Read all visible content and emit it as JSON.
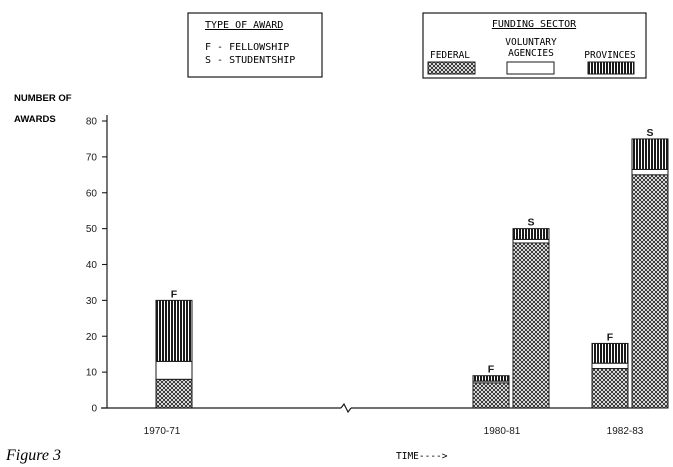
{
  "chart_data": {
    "type": "bar",
    "stacked": true,
    "ylabel": [
      "NUMBER OF",
      "AWARDS"
    ],
    "xlabel": "TIME---->",
    "caption": "Figure 3",
    "ylim": [
      0,
      80
    ],
    "yticks": [
      0,
      10,
      20,
      30,
      40,
      50,
      60,
      70,
      80
    ],
    "axis_break": true,
    "categories": [
      "1970-71",
      "1980-81",
      "1982-83"
    ],
    "bars": [
      {
        "category": "1970-71",
        "type": "F",
        "federal": 8,
        "voluntary": 5,
        "provinces": 17
      },
      {
        "category": "1980-81",
        "type": "F",
        "federal": 7,
        "voluntary": 0.5,
        "provinces": 1.5
      },
      {
        "category": "1980-81",
        "type": "S",
        "federal": 46,
        "voluntary": 1,
        "provinces": 3
      },
      {
        "category": "1982-83",
        "type": "F",
        "federal": 11,
        "voluntary": 1.5,
        "provinces": 5.5
      },
      {
        "category": "1982-83",
        "type": "S",
        "federal": 65,
        "voluntary": 1.5,
        "provinces": 8.5
      }
    ],
    "legend_type": {
      "title": "TYPE OF AWARD",
      "items": [
        "F - FELLOWSHIP",
        "S - STUDENTSHIP"
      ]
    },
    "legend_sector": {
      "title": "FUNDING SECTOR",
      "items": [
        {
          "key": "federal",
          "label": "FEDERAL"
        },
        {
          "key": "voluntary",
          "label": [
            "VOLUNTARY",
            "AGENCIES"
          ]
        },
        {
          "key": "provinces",
          "label": "PROVINCES"
        }
      ]
    },
    "colors": {
      "ink": "#1a1a1a",
      "background": "#ffffff"
    }
  }
}
